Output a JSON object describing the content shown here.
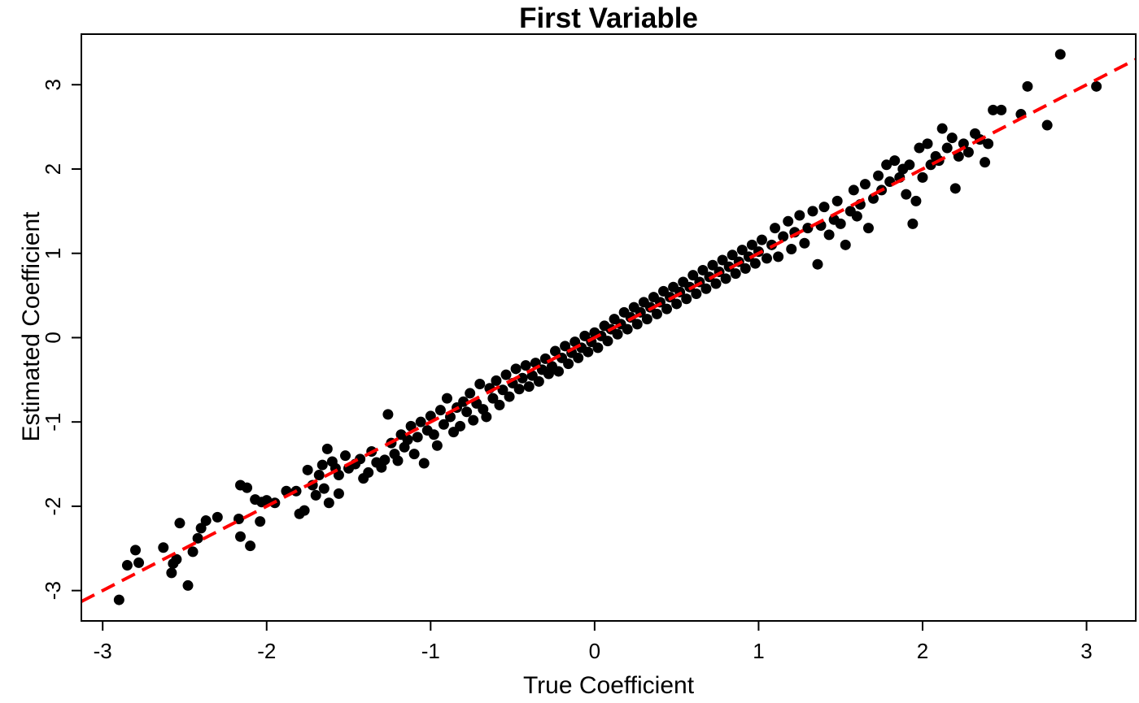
{
  "chart_data": {
    "type": "scatter",
    "title": "First Variable",
    "xlabel": "True Coefficient",
    "ylabel": "Estimated Coefficient",
    "xlim": [
      -3.13,
      3.3
    ],
    "ylim": [
      -3.36,
      3.6
    ],
    "x_ticks": [
      -3,
      -2,
      -1,
      0,
      1,
      2,
      3
    ],
    "y_ticks": [
      -3,
      -2,
      -1,
      0,
      1,
      2,
      3
    ],
    "x_tick_labels": [
      "-3",
      "-2",
      "-1",
      "0",
      "1",
      "2",
      "3"
    ],
    "y_tick_labels": [
      "-3",
      "-2",
      "-1",
      "0",
      "1",
      "2",
      "3"
    ],
    "grid": false,
    "point_color": "#000000",
    "reference_line": {
      "slope": 1,
      "intercept": 0,
      "style": "dashed",
      "color": "#ff0000"
    },
    "series": [
      {
        "name": "",
        "points": [
          [
            -2.9,
            -3.11
          ],
          [
            -2.85,
            -2.7
          ],
          [
            -2.8,
            -2.52
          ],
          [
            -2.78,
            -2.67
          ],
          [
            -2.63,
            -2.49
          ],
          [
            -2.58,
            -2.79
          ],
          [
            -2.57,
            -2.68
          ],
          [
            -2.55,
            -2.63
          ],
          [
            -2.53,
            -2.2
          ],
          [
            -2.48,
            -2.94
          ],
          [
            -2.45,
            -2.54
          ],
          [
            -2.42,
            -2.38
          ],
          [
            -2.4,
            -2.26
          ],
          [
            -2.37,
            -2.17
          ],
          [
            -2.3,
            -2.13
          ],
          [
            -2.17,
            -2.15
          ],
          [
            -2.16,
            -1.75
          ],
          [
            -2.16,
            -2.36
          ],
          [
            -2.12,
            -1.78
          ],
          [
            -2.1,
            -2.47
          ],
          [
            -2.07,
            -1.92
          ],
          [
            -2.04,
            -2.18
          ],
          [
            -2.03,
            -1.95
          ],
          [
            -2.0,
            -1.93
          ],
          [
            -1.95,
            -1.96
          ],
          [
            -1.88,
            -1.82
          ],
          [
            -1.82,
            -1.82
          ],
          [
            -1.8,
            -2.09
          ],
          [
            -1.77,
            -2.05
          ],
          [
            -1.75,
            -1.57
          ],
          [
            -1.72,
            -1.75
          ],
          [
            -1.7,
            -1.87
          ],
          [
            -1.68,
            -1.63
          ],
          [
            -1.65,
            -1.79
          ],
          [
            -1.66,
            -1.51
          ],
          [
            -1.63,
            -1.32
          ],
          [
            -1.62,
            -1.96
          ],
          [
            -1.6,
            -1.47
          ],
          [
            -1.58,
            -1.55
          ],
          [
            -1.56,
            -1.63
          ],
          [
            -1.56,
            -1.85
          ],
          [
            -1.52,
            -1.4
          ],
          [
            -1.5,
            -1.55
          ],
          [
            -1.46,
            -1.5
          ],
          [
            -1.43,
            -1.44
          ],
          [
            -1.41,
            -1.67
          ],
          [
            -1.38,
            -1.6
          ],
          [
            -1.36,
            -1.35
          ],
          [
            -1.33,
            -1.48
          ],
          [
            -1.3,
            -1.54
          ],
          [
            -1.28,
            -1.45
          ],
          [
            -1.26,
            -0.91
          ],
          [
            -1.24,
            -1.25
          ],
          [
            -1.22,
            -1.38
          ],
          [
            -1.2,
            -1.46
          ],
          [
            -1.18,
            -1.15
          ],
          [
            -1.16,
            -1.3
          ],
          [
            -1.14,
            -1.21
          ],
          [
            -1.12,
            -1.05
          ],
          [
            -1.1,
            -1.38
          ],
          [
            -1.08,
            -1.18
          ],
          [
            -1.06,
            -1.0
          ],
          [
            -1.04,
            -1.49
          ],
          [
            -1.02,
            -1.1
          ],
          [
            -1.0,
            -0.93
          ],
          [
            -0.98,
            -1.15
          ],
          [
            -0.96,
            -1.28
          ],
          [
            -0.94,
            -0.86
          ],
          [
            -0.92,
            -1.03
          ],
          [
            -0.9,
            -0.72
          ],
          [
            -0.88,
            -0.94
          ],
          [
            -0.86,
            -1.12
          ],
          [
            -0.84,
            -0.83
          ],
          [
            -0.82,
            -1.05
          ],
          [
            -0.8,
            -0.76
          ],
          [
            -0.78,
            -0.88
          ],
          [
            -0.76,
            -0.66
          ],
          [
            -0.74,
            -0.98
          ],
          [
            -0.72,
            -0.78
          ],
          [
            -0.7,
            -0.55
          ],
          [
            -0.68,
            -0.85
          ],
          [
            -0.66,
            -0.94
          ],
          [
            -0.64,
            -0.6
          ],
          [
            -0.62,
            -0.72
          ],
          [
            -0.6,
            -0.51
          ],
          [
            -0.58,
            -0.8
          ],
          [
            -0.56,
            -0.62
          ],
          [
            -0.54,
            -0.44
          ],
          [
            -0.52,
            -0.7
          ],
          [
            -0.5,
            -0.54
          ],
          [
            -0.48,
            -0.37
          ],
          [
            -0.46,
            -0.61
          ],
          [
            -0.44,
            -0.48
          ],
          [
            -0.42,
            -0.33
          ],
          [
            -0.4,
            -0.58
          ],
          [
            -0.38,
            -0.45
          ],
          [
            -0.36,
            -0.3
          ],
          [
            -0.34,
            -0.52
          ],
          [
            -0.32,
            -0.38
          ],
          [
            -0.3,
            -0.25
          ],
          [
            -0.28,
            -0.43
          ],
          [
            -0.26,
            -0.34
          ],
          [
            -0.24,
            -0.16
          ],
          [
            -0.22,
            -0.4
          ],
          [
            -0.2,
            -0.24
          ],
          [
            -0.18,
            -0.1
          ],
          [
            -0.16,
            -0.31
          ],
          [
            -0.14,
            -0.18
          ],
          [
            -0.12,
            -0.05
          ],
          [
            -0.1,
            -0.24
          ],
          [
            -0.08,
            -0.12
          ],
          [
            -0.06,
            0.02
          ],
          [
            -0.04,
            -0.17
          ],
          [
            -0.02,
            -0.05
          ],
          [
            0.0,
            0.06
          ],
          [
            0.02,
            -0.12
          ],
          [
            0.04,
            0.02
          ],
          [
            0.06,
            0.14
          ],
          [
            0.08,
            -0.04
          ],
          [
            0.1,
            0.1
          ],
          [
            0.12,
            0.22
          ],
          [
            0.14,
            0.04
          ],
          [
            0.16,
            0.16
          ],
          [
            0.18,
            0.3
          ],
          [
            0.2,
            0.1
          ],
          [
            0.22,
            0.24
          ],
          [
            0.24,
            0.36
          ],
          [
            0.26,
            0.16
          ],
          [
            0.28,
            0.3
          ],
          [
            0.3,
            0.42
          ],
          [
            0.32,
            0.22
          ],
          [
            0.34,
            0.36
          ],
          [
            0.36,
            0.48
          ],
          [
            0.38,
            0.28
          ],
          [
            0.4,
            0.42
          ],
          [
            0.42,
            0.55
          ],
          [
            0.44,
            0.34
          ],
          [
            0.46,
            0.48
          ],
          [
            0.48,
            0.6
          ],
          [
            0.5,
            0.4
          ],
          [
            0.52,
            0.54
          ],
          [
            0.54,
            0.66
          ],
          [
            0.56,
            0.46
          ],
          [
            0.58,
            0.6
          ],
          [
            0.6,
            0.74
          ],
          [
            0.62,
            0.52
          ],
          [
            0.64,
            0.66
          ],
          [
            0.66,
            0.8
          ],
          [
            0.68,
            0.58
          ],
          [
            0.7,
            0.72
          ],
          [
            0.72,
            0.86
          ],
          [
            0.74,
            0.64
          ],
          [
            0.76,
            0.78
          ],
          [
            0.78,
            0.92
          ],
          [
            0.8,
            0.7
          ],
          [
            0.82,
            0.84
          ],
          [
            0.84,
            0.98
          ],
          [
            0.86,
            0.76
          ],
          [
            0.88,
            0.9
          ],
          [
            0.9,
            1.04
          ],
          [
            0.92,
            0.82
          ],
          [
            0.94,
            0.96
          ],
          [
            0.96,
            1.1
          ],
          [
            0.98,
            0.88
          ],
          [
            1.0,
            1.02
          ],
          [
            1.02,
            1.16
          ],
          [
            1.05,
            0.94
          ],
          [
            1.08,
            1.1
          ],
          [
            1.1,
            1.3
          ],
          [
            1.12,
            0.96
          ],
          [
            1.15,
            1.2
          ],
          [
            1.18,
            1.38
          ],
          [
            1.2,
            1.05
          ],
          [
            1.22,
            1.25
          ],
          [
            1.25,
            1.45
          ],
          [
            1.28,
            1.12
          ],
          [
            1.3,
            1.3
          ],
          [
            1.33,
            1.5
          ],
          [
            1.36,
            0.87
          ],
          [
            1.38,
            1.33
          ],
          [
            1.4,
            1.55
          ],
          [
            1.43,
            1.22
          ],
          [
            1.46,
            1.4
          ],
          [
            1.48,
            1.62
          ],
          [
            1.5,
            1.35
          ],
          [
            1.53,
            1.1
          ],
          [
            1.56,
            1.5
          ],
          [
            1.58,
            1.75
          ],
          [
            1.6,
            1.44
          ],
          [
            1.62,
            1.58
          ],
          [
            1.65,
            1.82
          ],
          [
            1.67,
            1.3
          ],
          [
            1.7,
            1.65
          ],
          [
            1.73,
            1.92
          ],
          [
            1.75,
            1.75
          ],
          [
            1.78,
            2.05
          ],
          [
            1.8,
            1.85
          ],
          [
            1.83,
            2.1
          ],
          [
            1.86,
            1.9
          ],
          [
            1.88,
            2.0
          ],
          [
            1.9,
            1.7
          ],
          [
            1.92,
            2.05
          ],
          [
            1.94,
            1.35
          ],
          [
            1.96,
            1.62
          ],
          [
            1.98,
            2.25
          ],
          [
            2.0,
            1.9
          ],
          [
            2.03,
            2.3
          ],
          [
            2.05,
            2.05
          ],
          [
            2.08,
            2.15
          ],
          [
            2.1,
            2.1
          ],
          [
            2.12,
            2.48
          ],
          [
            2.15,
            2.25
          ],
          [
            2.18,
            2.37
          ],
          [
            2.2,
            1.77
          ],
          [
            2.22,
            2.15
          ],
          [
            2.25,
            2.3
          ],
          [
            2.28,
            2.2
          ],
          [
            2.32,
            2.42
          ],
          [
            2.35,
            2.35
          ],
          [
            2.38,
            2.08
          ],
          [
            2.4,
            2.3
          ],
          [
            2.43,
            2.7
          ],
          [
            2.48,
            2.7
          ],
          [
            2.6,
            2.65
          ],
          [
            2.64,
            2.98
          ],
          [
            2.76,
            2.52
          ],
          [
            2.84,
            3.36
          ],
          [
            3.06,
            2.98
          ]
        ]
      }
    ]
  }
}
